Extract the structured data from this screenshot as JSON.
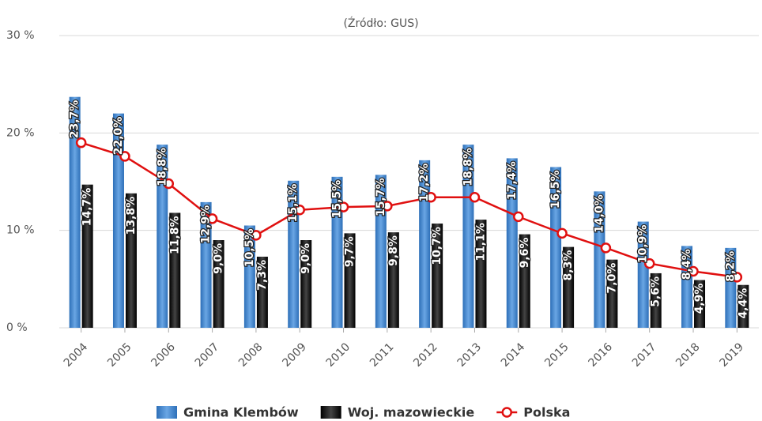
{
  "chart_data": {
    "type": "bar_line",
    "subtitle": "(Źródło: GUS)",
    "categories": [
      "2004",
      "2005",
      "2006",
      "2007",
      "2008",
      "2009",
      "2010",
      "2011",
      "2012",
      "2013",
      "2014",
      "2015",
      "2016",
      "2017",
      "2018",
      "2019"
    ],
    "series": [
      {
        "name": "Gmina Klembów",
        "color": "#3a7cc4",
        "kind": "bar",
        "values": [
          23.7,
          22.0,
          18.8,
          12.9,
          10.5,
          15.1,
          15.5,
          15.7,
          17.2,
          18.8,
          17.4,
          16.5,
          14.0,
          10.9,
          8.4,
          8.2
        ],
        "value_labels": [
          "23,7%",
          "22,0%",
          "18,8%",
          "12,9%",
          "10,5%",
          "15,1%",
          "15,5%",
          "15,7%",
          "17,2%",
          "18,8%",
          "17,4%",
          "16,5%",
          "14,0%",
          "10,9%",
          "8,4%",
          "8,2%"
        ]
      },
      {
        "name": "Woj. mazowieckie",
        "color": "#111111",
        "kind": "bar",
        "values": [
          14.7,
          13.8,
          11.8,
          9.0,
          7.3,
          9.0,
          9.7,
          9.8,
          10.7,
          11.1,
          9.6,
          8.3,
          7.0,
          5.6,
          4.9,
          4.4
        ],
        "value_labels": [
          "14,7%",
          "13,8%",
          "11,8%",
          "9,0%",
          "7,3%",
          "9,0%",
          "9,7%",
          "9,8%",
          "10,7%",
          "11,1%",
          "9,6%",
          "8,3%",
          "7,0%",
          "5,6%",
          "4,9%",
          "4,4%"
        ]
      },
      {
        "name": "Polska",
        "color": "#e01010",
        "kind": "line",
        "values": [
          19.0,
          17.6,
          14.8,
          11.2,
          9.5,
          12.1,
          12.4,
          12.5,
          13.4,
          13.4,
          11.4,
          9.7,
          8.2,
          6.6,
          5.8,
          5.2
        ]
      }
    ],
    "ylim": [
      0,
      30
    ],
    "yticks": [
      {
        "value": 0,
        "label": "0 %"
      },
      {
        "value": 10,
        "label": "10 %"
      },
      {
        "value": 20,
        "label": "20 %"
      },
      {
        "value": 30,
        "label": "30 %"
      }
    ],
    "grid": true
  }
}
